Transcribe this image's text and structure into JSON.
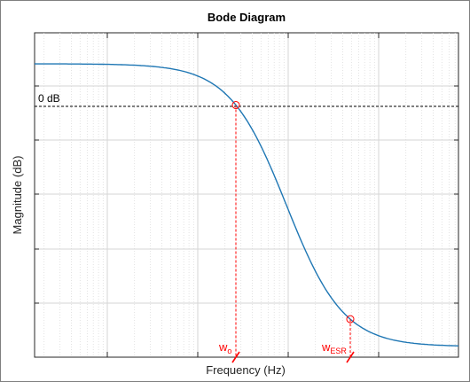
{
  "chart_data": {
    "type": "line",
    "title": "Bode Diagram",
    "xlabel": "Frequency  (Hz)",
    "ylabel": "Magnitude (dB)",
    "x_scale": "log",
    "grid": true,
    "x_tick_labels_shown": false,
    "y_tick_labels_shown": false,
    "reference_line": {
      "label": "0 dB",
      "style": "dashed",
      "color": "#000000"
    },
    "series": [
      {
        "line_color": "#1f77b4",
        "shape": "second-order low-pass magnitude response (high flat level, steep roll-off, low flat level)"
      }
    ],
    "annotations": [
      {
        "label_main": "w",
        "label_sub": "o",
        "color": "#ff0000",
        "marker": "circle",
        "guide": "dashed vertical"
      },
      {
        "label_main": "w",
        "label_sub": "ESR",
        "color": "#ff0000",
        "marker": "circle",
        "guide": "dashed vertical"
      }
    ]
  }
}
